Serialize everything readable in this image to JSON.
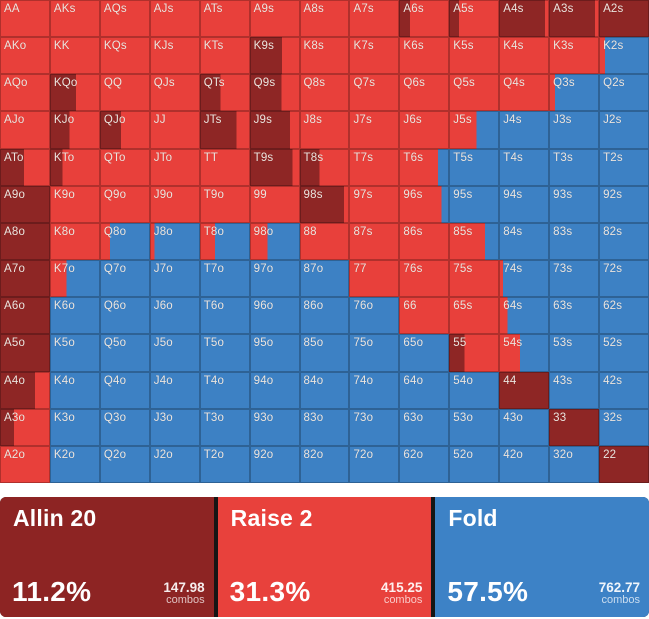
{
  "colors": {
    "allin": "#8e2625",
    "raise": "#e8403b",
    "fold": "#3d81c4",
    "label": "#ece5df",
    "grid_line": "rgba(0,0,0,0.24)",
    "legend_gap": "#151515",
    "page_bg": "#ffffff"
  },
  "grid": {
    "note": "cells = [hand, allin_fraction, raise_fraction, fold_fraction]",
    "rows": [
      {
        "cells": [
          [
            "AA",
            0,
            1,
            0
          ],
          [
            "AKs",
            0,
            1,
            0
          ],
          [
            "AQs",
            0,
            1,
            0
          ],
          [
            "AJs",
            0,
            1,
            0
          ],
          [
            "ATs",
            0,
            1,
            0
          ],
          [
            "A9s",
            0,
            1,
            0
          ],
          [
            "A8s",
            0,
            1,
            0
          ],
          [
            "A7s",
            0,
            1,
            0
          ],
          [
            "A6s",
            0.22,
            0.78,
            0
          ],
          [
            "A5s",
            0.2,
            0.8,
            0
          ],
          [
            "A4s",
            0.92,
            0.08,
            0
          ],
          [
            "A3s",
            0.92,
            0.08,
            0
          ],
          [
            "A2s",
            1,
            0,
            0
          ]
        ]
      },
      {
        "cells": [
          [
            "AKo",
            0,
            1,
            0
          ],
          [
            "KK",
            0,
            1,
            0
          ],
          [
            "KQs",
            0,
            1,
            0
          ],
          [
            "KJs",
            0,
            1,
            0
          ],
          [
            "KTs",
            0,
            1,
            0
          ],
          [
            "K9s",
            0.64,
            0.36,
            0
          ],
          [
            "K8s",
            0,
            1,
            0
          ],
          [
            "K7s",
            0,
            1,
            0
          ],
          [
            "K6s",
            0,
            1,
            0
          ],
          [
            "K5s",
            0,
            1,
            0
          ],
          [
            "K4s",
            0,
            1,
            0
          ],
          [
            "K3s",
            0,
            1,
            0
          ],
          [
            "K2s",
            0,
            0.12,
            0.88
          ]
        ]
      },
      {
        "cells": [
          [
            "AQo",
            0,
            1,
            0
          ],
          [
            "KQo",
            0.52,
            0.48,
            0
          ],
          [
            "QQ",
            0,
            1,
            0
          ],
          [
            "QJs",
            0,
            1,
            0
          ],
          [
            "QTs",
            0.41,
            0.59,
            0
          ],
          [
            "Q9s",
            0.63,
            0.37,
            0
          ],
          [
            "Q8s",
            0,
            1,
            0
          ],
          [
            "Q7s",
            0,
            1,
            0
          ],
          [
            "Q6s",
            0,
            1,
            0
          ],
          [
            "Q5s",
            0,
            1,
            0
          ],
          [
            "Q4s",
            0,
            1,
            0
          ],
          [
            "Q3s",
            0,
            0.12,
            0.88
          ],
          [
            "Q2s",
            0,
            0,
            1
          ]
        ]
      },
      {
        "cells": [
          [
            "AJo",
            0,
            1,
            0
          ],
          [
            "KJo",
            0.39,
            0.61,
            0
          ],
          [
            "QJo",
            0.42,
            0.58,
            0
          ],
          [
            "JJ",
            0,
            1,
            0
          ],
          [
            "JTs",
            0.73,
            0.27,
            0
          ],
          [
            "J9s",
            0.8,
            0.2,
            0
          ],
          [
            "J8s",
            0,
            1,
            0
          ],
          [
            "J7s",
            0,
            1,
            0
          ],
          [
            "J6s",
            0,
            1,
            0
          ],
          [
            "J5s",
            0,
            0.55,
            0.45
          ],
          [
            "J4s",
            0,
            0,
            1
          ],
          [
            "J3s",
            0,
            0,
            1
          ],
          [
            "J2s",
            0,
            0,
            1
          ]
        ]
      },
      {
        "cells": [
          [
            "ATo",
            0.48,
            0.52,
            0
          ],
          [
            "KTo",
            0.25,
            0.75,
            0
          ],
          [
            "QTo",
            0,
            1,
            0
          ],
          [
            "JTo",
            0,
            1,
            0
          ],
          [
            "TT",
            0,
            1,
            0
          ],
          [
            "T9s",
            0.85,
            0.15,
            0
          ],
          [
            "T8s",
            0.4,
            0.6,
            0
          ],
          [
            "T7s",
            0,
            1,
            0
          ],
          [
            "T6s",
            0,
            0.78,
            0.22
          ],
          [
            "T5s",
            0,
            0,
            1
          ],
          [
            "T4s",
            0,
            0,
            1
          ],
          [
            "T3s",
            0,
            0,
            1
          ],
          [
            "T2s",
            0,
            0,
            1
          ]
        ]
      },
      {
        "cells": [
          [
            "A9o",
            1,
            0,
            0
          ],
          [
            "K9o",
            0,
            1,
            0
          ],
          [
            "Q9o",
            0,
            1,
            0
          ],
          [
            "J9o",
            0,
            1,
            0
          ],
          [
            "T9o",
            0,
            1,
            0
          ],
          [
            "99",
            0,
            1,
            0
          ],
          [
            "98s",
            0.9,
            0.1,
            0
          ],
          [
            "97s",
            0,
            1,
            0
          ],
          [
            "96s",
            0,
            0.85,
            0.15
          ],
          [
            "95s",
            0,
            0,
            1
          ],
          [
            "94s",
            0,
            0,
            1
          ],
          [
            "93s",
            0,
            0,
            1
          ],
          [
            "92s",
            0,
            0,
            1
          ]
        ]
      },
      {
        "cells": [
          [
            "A8o",
            1,
            0,
            0
          ],
          [
            "K8o",
            0,
            1,
            0
          ],
          [
            "Q8o",
            0,
            0.2,
            0.8
          ],
          [
            "J8o",
            0,
            0.09,
            0.91
          ],
          [
            "T8o",
            0,
            0.3,
            0.7
          ],
          [
            "98o",
            0,
            0.35,
            0.65
          ],
          [
            "88",
            0,
            1,
            0
          ],
          [
            "87s",
            0,
            1,
            0
          ],
          [
            "86s",
            0,
            1,
            0
          ],
          [
            "85s",
            0,
            0.72,
            0.28
          ],
          [
            "84s",
            0,
            0,
            1
          ],
          [
            "83s",
            0,
            0,
            1
          ],
          [
            "82s",
            0,
            0,
            1
          ]
        ]
      },
      {
        "cells": [
          [
            "A7o",
            1,
            0,
            0
          ],
          [
            "K7o",
            0,
            0.33,
            0.67
          ],
          [
            "Q7o",
            0,
            0,
            1
          ],
          [
            "J7o",
            0,
            0,
            1
          ],
          [
            "T7o",
            0,
            0,
            1
          ],
          [
            "97o",
            0,
            0,
            1
          ],
          [
            "87o",
            0,
            0,
            1
          ],
          [
            "77",
            0,
            1,
            0
          ],
          [
            "76s",
            0,
            1,
            0
          ],
          [
            "75s",
            0,
            1,
            0
          ],
          [
            "74s",
            0,
            0.08,
            0.92
          ],
          [
            "73s",
            0,
            0,
            1
          ],
          [
            "72s",
            0,
            0,
            1
          ]
        ]
      },
      {
        "cells": [
          [
            "A6o",
            1,
            0,
            0
          ],
          [
            "K6o",
            0,
            0,
            1
          ],
          [
            "Q6o",
            0,
            0,
            1
          ],
          [
            "J6o",
            0,
            0,
            1
          ],
          [
            "T6o",
            0,
            0,
            1
          ],
          [
            "96o",
            0,
            0,
            1
          ],
          [
            "86o",
            0,
            0,
            1
          ],
          [
            "76o",
            0,
            0,
            1
          ],
          [
            "66",
            0,
            1,
            0
          ],
          [
            "65s",
            0,
            1,
            0
          ],
          [
            "64s",
            0,
            0.17,
            0.83
          ],
          [
            "63s",
            0,
            0,
            1
          ],
          [
            "62s",
            0,
            0,
            1
          ]
        ]
      },
      {
        "cells": [
          [
            "A5o",
            1,
            0,
            0
          ],
          [
            "K5o",
            0,
            0,
            1
          ],
          [
            "Q5o",
            0,
            0,
            1
          ],
          [
            "J5o",
            0,
            0,
            1
          ],
          [
            "T5o",
            0,
            0,
            1
          ],
          [
            "95o",
            0,
            0,
            1
          ],
          [
            "85o",
            0,
            0,
            1
          ],
          [
            "75o",
            0,
            0,
            1
          ],
          [
            "65o",
            0,
            0,
            1
          ],
          [
            "55",
            0.31,
            0.69,
            0
          ],
          [
            "54s",
            0,
            0.42,
            0.58
          ],
          [
            "53s",
            0,
            0,
            1
          ],
          [
            "52s",
            0,
            0,
            1
          ]
        ]
      },
      {
        "cells": [
          [
            "A4o",
            0.7,
            0.3,
            0
          ],
          [
            "K4o",
            0,
            0,
            1
          ],
          [
            "Q4o",
            0,
            0,
            1
          ],
          [
            "J4o",
            0,
            0,
            1
          ],
          [
            "T4o",
            0,
            0,
            1
          ],
          [
            "94o",
            0,
            0,
            1
          ],
          [
            "84o",
            0,
            0,
            1
          ],
          [
            "74o",
            0,
            0,
            1
          ],
          [
            "64o",
            0,
            0,
            1
          ],
          [
            "54o",
            0,
            0,
            1
          ],
          [
            "44",
            1,
            0,
            0
          ],
          [
            "43s",
            0,
            0,
            1
          ],
          [
            "42s",
            0,
            0,
            1
          ]
        ]
      },
      {
        "cells": [
          [
            "A3o",
            0.28,
            0.72,
            0
          ],
          [
            "K3o",
            0,
            0,
            1
          ],
          [
            "Q3o",
            0,
            0,
            1
          ],
          [
            "J3o",
            0,
            0,
            1
          ],
          [
            "T3o",
            0,
            0,
            1
          ],
          [
            "93o",
            0,
            0,
            1
          ],
          [
            "83o",
            0,
            0,
            1
          ],
          [
            "73o",
            0,
            0,
            1
          ],
          [
            "63o",
            0,
            0,
            1
          ],
          [
            "53o",
            0,
            0,
            1
          ],
          [
            "43o",
            0,
            0,
            1
          ],
          [
            "33",
            1,
            0,
            0
          ],
          [
            "32s",
            0,
            0,
            1
          ]
        ]
      },
      {
        "cells": [
          [
            "A2o",
            0,
            1,
            0
          ],
          [
            "K2o",
            0,
            0,
            1
          ],
          [
            "Q2o",
            0,
            0,
            1
          ],
          [
            "J2o",
            0,
            0,
            1
          ],
          [
            "T2o",
            0,
            0,
            1
          ],
          [
            "92o",
            0,
            0,
            1
          ],
          [
            "82o",
            0,
            0,
            1
          ],
          [
            "72o",
            0,
            0,
            1
          ],
          [
            "62o",
            0,
            0,
            1
          ],
          [
            "52o",
            0,
            0,
            1
          ],
          [
            "42o",
            0,
            0,
            1
          ],
          [
            "32o",
            0,
            0,
            1
          ],
          [
            "22",
            1,
            0,
            0
          ]
        ]
      }
    ]
  },
  "legend": {
    "items": [
      {
        "label": "Allin 20",
        "percent": "11.2%",
        "combos": "147.98",
        "combos_unit": "combos",
        "color": "#8d2423"
      },
      {
        "label": "Raise 2",
        "percent": "31.3%",
        "combos": "415.25",
        "combos_unit": "combos",
        "color": "#e8413c"
      },
      {
        "label": "Fold",
        "percent": "57.5%",
        "combos": "762.77",
        "combos_unit": "combos",
        "color": "#3d82c6"
      }
    ]
  }
}
